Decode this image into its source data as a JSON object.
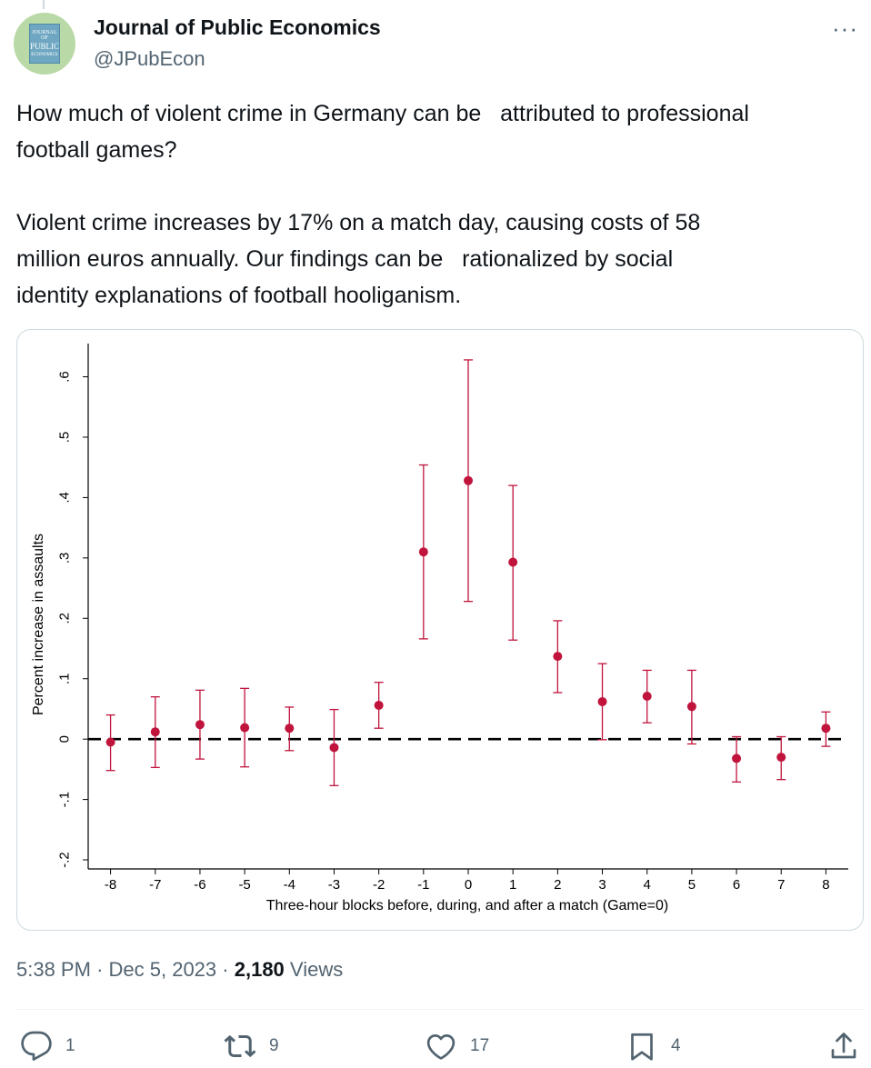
{
  "tweet": {
    "author_name": "Journal of Public Economics",
    "author_handle": "@JPubEcon",
    "avatar_text": [
      "JOURNAL OF",
      "PUBLIC",
      "ECONOMICS"
    ],
    "text": "How much of violent crime in Germany can be   attributed to professional\nfootball games?\n\nViolent crime increases by 17% on a match day, causing costs of 58\nmillion euros annually. Our findings can be   rationalized by social\nidentity explanations of football hooliganism.",
    "time": "5:38 PM",
    "date": "Dec 5, 2023",
    "separator": "·",
    "views_count": "2,180",
    "views_label": "Views",
    "more_label": "···"
  },
  "actions": {
    "reply": {
      "icon": "reply-icon",
      "count": "1"
    },
    "retweet": {
      "icon": "retweet-icon",
      "count": "9"
    },
    "like": {
      "icon": "heart-icon",
      "count": "17"
    },
    "bookmark": {
      "icon": "bookmark-icon",
      "count": "4"
    },
    "share": {
      "icon": "share-icon"
    }
  },
  "chart_data": {
    "type": "scatter",
    "subtype": "point estimates with confidence intervals",
    "xlabel": "Three-hour blocks before, during, and after a match (Game=0)",
    "ylabel": "Percent increase in assaults",
    "x": [
      -8,
      -7,
      -6,
      -5,
      -4,
      -3,
      -2,
      -1,
      0,
      1,
      2,
      3,
      4,
      5,
      6,
      7,
      8
    ],
    "y": [
      -0.005,
      0.012,
      0.024,
      0.019,
      0.018,
      -0.014,
      0.056,
      0.31,
      0.428,
      0.293,
      0.137,
      0.062,
      0.071,
      0.054,
      -0.032,
      -0.03,
      0.018
    ],
    "ci_low": [
      -0.052,
      -0.047,
      -0.033,
      -0.046,
      -0.019,
      -0.077,
      0.018,
      0.166,
      0.228,
      0.164,
      0.077,
      -0.001,
      0.027,
      -0.008,
      -0.071,
      -0.067,
      -0.012
    ],
    "ci_high": [
      0.04,
      0.07,
      0.081,
      0.084,
      0.053,
      0.049,
      0.094,
      0.454,
      0.628,
      0.42,
      0.196,
      0.125,
      0.114,
      0.114,
      0.004,
      0.004,
      0.045
    ],
    "x_ticks": [
      "-8",
      "-7",
      "-6",
      "-5",
      "-4",
      "-3",
      "-2",
      "-1",
      "0",
      "1",
      "2",
      "3",
      "4",
      "5",
      "6",
      "7",
      "8"
    ],
    "y_ticks": [
      -0.2,
      -0.1,
      0,
      0.1,
      0.2,
      0.3,
      0.4,
      0.5,
      0.6
    ],
    "y_tick_labels": [
      "-.2",
      "-.1",
      "0",
      ".1",
      ".2",
      ".3",
      ".4",
      ".5",
      ".6"
    ],
    "xlim": [
      -8.5,
      8.5
    ],
    "ylim": [
      -0.215,
      0.655
    ],
    "reference_line": 0,
    "grid": false,
    "marker_color": "#c0143c",
    "reference_line_color": "#000000"
  }
}
